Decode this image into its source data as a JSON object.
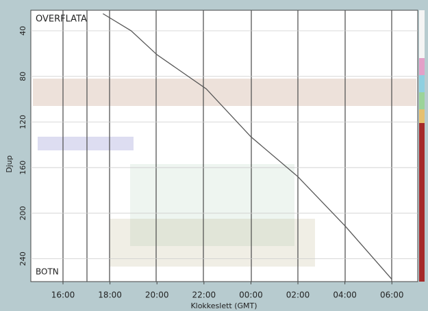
{
  "chart_data": {
    "type": "line",
    "annotations": [
      "OVERFLATA",
      "BOTN"
    ],
    "xlabel": "Klokkeslett (GMT)",
    "ylabel": "Djup",
    "x": [
      17.7,
      18.9,
      20,
      22.1,
      24,
      26,
      28,
      30
    ],
    "series": [
      {
        "color": "#555555",
        "values": [
          25,
          40,
          61,
          91,
          133,
          168,
          211,
          258
        ]
      }
    ],
    "xlim": [
      14.63,
      31.1
    ],
    "xticks": [
      {
        "value": 16,
        "label": "16:00"
      },
      {
        "value": 18,
        "label": "18:00"
      },
      {
        "value": 20,
        "label": "20:00"
      },
      {
        "value": 22,
        "label": "22:00"
      },
      {
        "value": 24,
        "label": "00:00"
      },
      {
        "value": 26,
        "label": "02:00"
      },
      {
        "value": 28,
        "label": "04:00"
      },
      {
        "value": 30,
        "label": "06:00"
      }
    ],
    "ylim": [
      22,
      260
    ],
    "yticks": [
      40,
      80,
      120,
      160,
      200,
      240
    ],
    "y_inverted": true,
    "grid": true
  }
}
